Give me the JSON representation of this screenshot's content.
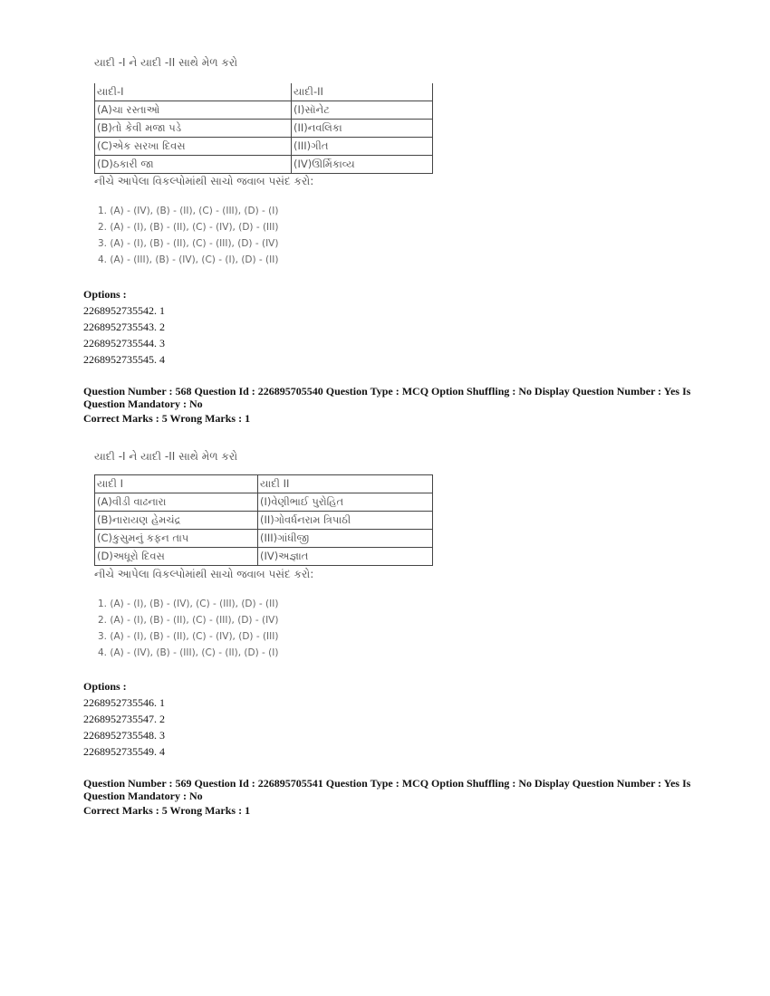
{
  "q1": {
    "title": "યાદી -I ને યાદી -II સાથે મેળ કરો",
    "table": {
      "headers": [
        "યાદી-I",
        "યાદી-II"
      ],
      "rows": [
        [
          "(A)ચા રસ્તાઓ",
          "(I)સૉનેટ"
        ],
        [
          "(B)તો કેવી મજા પડે",
          "(II)નવલિકા"
        ],
        [
          "(C)એક સરખા દિવસ",
          "(III)ગીત"
        ],
        [
          "(D)ઠકારી જા",
          "(IV)ઊર્મિકાવ્ય"
        ]
      ]
    },
    "instruction": "નીચે આપેલા વિકલ્પોમાંથી સાચો જવાબ પસંદ કરો:",
    "choices": [
      "1. (A) - (IV), (B) - (II), (C) - (III), (D) - (I)",
      "2. (A) - (I), (B) - (II), (C) - (IV), (D) - (III)",
      "3. (A) - (I), (B) - (II), (C) - (III), (D) - (IV)",
      "4. (A) - (III), (B) - (IV), (C) - (I), (D) - (II)"
    ],
    "options_label": "Options :",
    "options": [
      "2268952735542. 1",
      "2268952735543. 2",
      "2268952735544. 3",
      "2268952735545. 4"
    ]
  },
  "q568": {
    "header_line1": "Question Number : 568 Question Id : 226895705540 Question Type : MCQ Option Shuffling : No Display Question Number : Yes Is",
    "header_line2": "Question Mandatory : No",
    "marks": "Correct Marks : 5 Wrong Marks : 1",
    "title": "યાદી -I ને યાદી -II સાથે મેળ કરો",
    "table": {
      "headers": [
        "યાદી I",
        "યાદી II"
      ],
      "rows": [
        [
          "(A)વીડી વાઢનારા",
          "(I)વેણીભાઈ પુરોહિત"
        ],
        [
          "(B)નારાયણ હેમચંદ્ર",
          "(II)ગોવર્ધનરામ ત્રિપાઠી"
        ],
        [
          "(C)કુસુમનું કફન તાપ",
          "(III)ગાંધીજી"
        ],
        [
          "(D)અધૂરો દિવસ",
          "(IV)અજ્ઞાત"
        ]
      ]
    },
    "instruction": "નીચે આપેલા વિકલ્પોમાંથી સાચો જવાબ પસંદ કરો:",
    "choices": [
      "1. (A) - (I), (B) - (IV), (C) - (III), (D) - (II)",
      "2. (A) - (I), (B) - (II), (C) - (III), (D) - (IV)",
      "3. (A) - (I), (B) - (II), (C) - (IV), (D) - (III)",
      "4. (A) - (IV), (B) - (III), (C) - (II), (D) - (I)"
    ],
    "options_label": "Options :",
    "options": [
      "2268952735546. 1",
      "2268952735547. 2",
      "2268952735548. 3",
      "2268952735549. 4"
    ]
  },
  "q569": {
    "header_line1": "Question Number : 569 Question Id : 226895705541 Question Type : MCQ Option Shuffling : No Display Question Number : Yes Is",
    "header_line2": "Question Mandatory : No",
    "marks": "Correct Marks : 5 Wrong Marks : 1"
  }
}
